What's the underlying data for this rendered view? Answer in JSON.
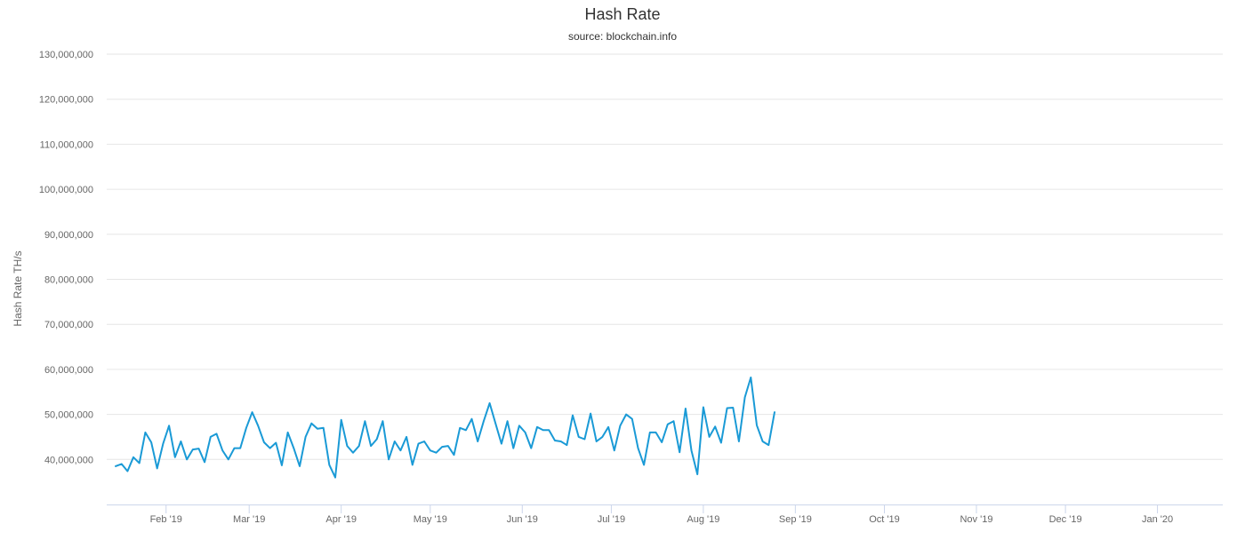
{
  "chart_data": {
    "type": "line",
    "title": "Hash Rate",
    "subtitle": "source: blockchain.info",
    "ylabel": "Hash Rate TH/s",
    "xlabel": "",
    "ylim": [
      30000000,
      130000000
    ],
    "yticks": [
      40000000,
      50000000,
      60000000,
      70000000,
      80000000,
      90000000,
      100000000,
      110000000,
      120000000,
      130000000
    ],
    "ytick_labels": [
      "40,000,000",
      "50,000,000",
      "60,000,000",
      "70,000,000",
      "80,000,000",
      "90,000,000",
      "100,000,000",
      "110,000,000",
      "120,000,000",
      "130,000,000"
    ],
    "xlim": [
      "2019-01-12",
      "2020-01-23"
    ],
    "xticks": [
      "2019-02-01",
      "2019-03-01",
      "2019-04-01",
      "2019-05-01",
      "2019-06-01",
      "2019-07-01",
      "2019-08-01",
      "2019-09-01",
      "2019-10-01",
      "2019-11-01",
      "2019-12-01",
      "2020-01-01"
    ],
    "xtick_labels": [
      "Feb '19",
      "Mar '19",
      "Apr '19",
      "May '19",
      "Jun '19",
      "Jul '19",
      "Aug '19",
      "Sep '19",
      "Oct '19",
      "Nov '19",
      "Dec '19",
      "Jan '20"
    ],
    "grid": true,
    "legend": "none",
    "series": [
      {
        "color": "#1a9ad6",
        "points": [
          [
            "2019-01-15",
            38500000
          ],
          [
            "2019-01-17",
            39000000
          ],
          [
            "2019-01-19",
            37400000
          ],
          [
            "2019-01-21",
            40500000
          ],
          [
            "2019-01-23",
            39200000
          ],
          [
            "2019-01-25",
            46000000
          ],
          [
            "2019-01-27",
            43800000
          ],
          [
            "2019-01-29",
            38000000
          ],
          [
            "2019-01-31",
            43500000
          ],
          [
            "2019-02-02",
            47500000
          ],
          [
            "2019-02-04",
            40500000
          ],
          [
            "2019-02-06",
            44000000
          ],
          [
            "2019-02-08",
            40000000
          ],
          [
            "2019-02-10",
            42200000
          ],
          [
            "2019-02-12",
            42400000
          ],
          [
            "2019-02-14",
            39400000
          ],
          [
            "2019-02-16",
            45000000
          ],
          [
            "2019-02-18",
            45700000
          ],
          [
            "2019-02-20",
            42000000
          ],
          [
            "2019-02-22",
            40000000
          ],
          [
            "2019-02-24",
            42500000
          ],
          [
            "2019-02-26",
            42500000
          ],
          [
            "2019-02-28",
            47000000
          ],
          [
            "2019-03-02",
            50500000
          ],
          [
            "2019-03-04",
            47500000
          ],
          [
            "2019-03-06",
            43800000
          ],
          [
            "2019-03-08",
            42500000
          ],
          [
            "2019-03-10",
            43700000
          ],
          [
            "2019-03-12",
            38700000
          ],
          [
            "2019-03-14",
            46000000
          ],
          [
            "2019-03-16",
            42500000
          ],
          [
            "2019-03-18",
            38500000
          ],
          [
            "2019-03-20",
            45000000
          ],
          [
            "2019-03-22",
            48000000
          ],
          [
            "2019-03-24",
            46800000
          ],
          [
            "2019-03-26",
            47000000
          ],
          [
            "2019-03-28",
            38800000
          ],
          [
            "2019-03-30",
            36000000
          ],
          [
            "2019-04-01",
            48800000
          ],
          [
            "2019-04-03",
            43000000
          ],
          [
            "2019-04-05",
            41500000
          ],
          [
            "2019-04-07",
            43000000
          ],
          [
            "2019-04-09",
            48500000
          ],
          [
            "2019-04-11",
            43000000
          ],
          [
            "2019-04-13",
            44500000
          ],
          [
            "2019-04-15",
            48500000
          ],
          [
            "2019-04-17",
            40000000
          ],
          [
            "2019-04-19",
            44000000
          ],
          [
            "2019-04-21",
            42000000
          ],
          [
            "2019-04-23",
            45000000
          ],
          [
            "2019-04-25",
            38800000
          ],
          [
            "2019-04-27",
            43500000
          ],
          [
            "2019-04-29",
            44000000
          ],
          [
            "2019-05-01",
            42000000
          ],
          [
            "2019-05-03",
            41500000
          ],
          [
            "2019-05-05",
            42800000
          ],
          [
            "2019-05-07",
            43000000
          ],
          [
            "2019-05-09",
            41000000
          ],
          [
            "2019-05-11",
            47000000
          ],
          [
            "2019-05-13",
            46500000
          ],
          [
            "2019-05-15",
            49000000
          ],
          [
            "2019-05-17",
            44000000
          ],
          [
            "2019-05-19",
            48500000
          ],
          [
            "2019-05-21",
            52500000
          ],
          [
            "2019-05-23",
            48000000
          ],
          [
            "2019-05-25",
            43500000
          ],
          [
            "2019-05-27",
            48500000
          ],
          [
            "2019-05-29",
            42500000
          ],
          [
            "2019-05-31",
            47500000
          ],
          [
            "2019-06-02",
            46000000
          ],
          [
            "2019-06-04",
            42500000
          ],
          [
            "2019-06-06",
            47200000
          ],
          [
            "2019-06-08",
            46500000
          ],
          [
            "2019-06-10",
            46500000
          ],
          [
            "2019-06-12",
            44200000
          ],
          [
            "2019-06-14",
            44000000
          ],
          [
            "2019-06-16",
            43200000
          ],
          [
            "2019-06-18",
            49800000
          ],
          [
            "2019-06-20",
            45000000
          ],
          [
            "2019-06-22",
            44500000
          ],
          [
            "2019-06-24",
            50200000
          ],
          [
            "2019-06-26",
            44000000
          ],
          [
            "2019-06-28",
            45000000
          ],
          [
            "2019-06-30",
            47200000
          ],
          [
            "2019-07-02",
            42000000
          ],
          [
            "2019-07-04",
            47500000
          ],
          [
            "2019-07-06",
            50000000
          ],
          [
            "2019-07-08",
            49000000
          ],
          [
            "2019-07-10",
            42500000
          ],
          [
            "2019-07-12",
            38800000
          ],
          [
            "2019-07-14",
            46000000
          ],
          [
            "2019-07-16",
            46000000
          ],
          [
            "2019-07-18",
            43800000
          ],
          [
            "2019-07-20",
            47800000
          ],
          [
            "2019-07-22",
            48500000
          ],
          [
            "2019-07-24",
            41600000
          ],
          [
            "2019-07-26",
            51300000
          ],
          [
            "2019-07-28",
            42000000
          ],
          [
            "2019-07-30",
            36700000
          ],
          [
            "2019-08-01",
            51600000
          ],
          [
            "2019-08-03",
            45000000
          ],
          [
            "2019-08-05",
            47300000
          ],
          [
            "2019-08-07",
            43700000
          ],
          [
            "2019-08-09",
            51400000
          ],
          [
            "2019-08-11",
            51500000
          ],
          [
            "2019-08-13",
            44000000
          ],
          [
            "2019-08-15",
            53800000
          ],
          [
            "2019-08-17",
            58200000
          ],
          [
            "2019-08-19",
            47600000
          ],
          [
            "2019-08-21",
            44000000
          ],
          [
            "2019-08-23",
            43200000
          ],
          [
            "2019-08-25",
            50500000
          ]
        ]
      }
    ]
  }
}
